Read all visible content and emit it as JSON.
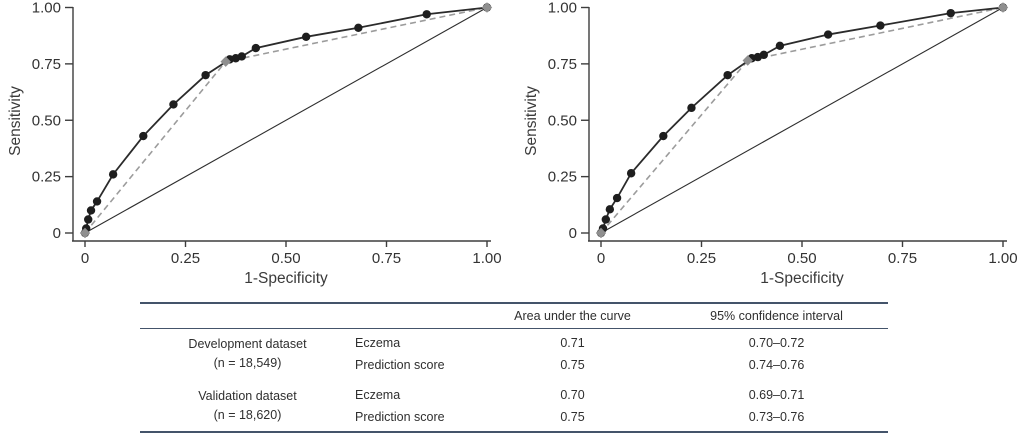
{
  "chart_data": [
    {
      "type": "line",
      "title": "",
      "xlabel": "1-Specificity",
      "ylabel": "Sensitivity",
      "xlim": [
        0,
        1
      ],
      "ylim": [
        0,
        1
      ],
      "grid": false,
      "legend": "none",
      "xticks": [
        0,
        0.25,
        0.5,
        0.75,
        1
      ],
      "xtick_labels": [
        "0",
        "0.25",
        "0.50",
        "0.75",
        "1.00"
      ],
      "yticks": [
        0,
        0.25,
        0.5,
        0.75,
        1
      ],
      "ytick_labels": [
        "0",
        "0.25",
        "0.50",
        "0.75",
        "1.00"
      ],
      "series": [
        {
          "name": "reference_diagonal",
          "dash": "",
          "marker": "none",
          "color": "#2e2e2e",
          "width": 1.1,
          "points": [
            [
              0,
              0
            ],
            [
              1,
              1
            ]
          ]
        },
        {
          "name": "roc_dashed_gray",
          "dash": "6 4",
          "marker": "diamond",
          "color": "#9c9c9c",
          "marker_color": "#8f8f8f",
          "width": 1.6,
          "points": [
            [
              0,
              0
            ],
            [
              0.35,
              0.76
            ],
            [
              1,
              1
            ]
          ]
        },
        {
          "name": "roc_solid_black",
          "dash": "",
          "marker": "circle",
          "color": "#2b2b2b",
          "marker_color": "#1e1e1e",
          "width": 1.8,
          "points": [
            [
              0,
              0
            ],
            [
              0.003,
              0.02
            ],
            [
              0.008,
              0.06
            ],
            [
              0.015,
              0.1
            ],
            [
              0.03,
              0.14
            ],
            [
              0.07,
              0.26
            ],
            [
              0.145,
              0.43
            ],
            [
              0.22,
              0.57
            ],
            [
              0.3,
              0.7
            ],
            [
              0.36,
              0.77
            ],
            [
              0.375,
              0.775
            ],
            [
              0.39,
              0.783
            ],
            [
              0.425,
              0.82
            ],
            [
              0.55,
              0.87
            ],
            [
              0.68,
              0.91
            ],
            [
              0.85,
              0.97
            ],
            [
              1,
              1
            ]
          ]
        }
      ]
    },
    {
      "type": "line",
      "title": "",
      "xlabel": "1-Specificity",
      "ylabel": "Sensitivity",
      "xlim": [
        0,
        1
      ],
      "ylim": [
        0,
        1
      ],
      "grid": false,
      "legend": "none",
      "xticks": [
        0,
        0.25,
        0.5,
        0.75,
        1
      ],
      "xtick_labels": [
        "0",
        "0.25",
        "0.50",
        "0.75",
        "1.00"
      ],
      "yticks": [
        0,
        0.25,
        0.5,
        0.75,
        1
      ],
      "ytick_labels": [
        "0",
        "0.25",
        "0.50",
        "0.75",
        "1.00"
      ],
      "series": [
        {
          "name": "reference_diagonal",
          "dash": "",
          "marker": "none",
          "color": "#2e2e2e",
          "width": 1.1,
          "points": [
            [
              0,
              0
            ],
            [
              1,
              1
            ]
          ]
        },
        {
          "name": "roc_dashed_gray",
          "dash": "6 4",
          "marker": "diamond",
          "color": "#9c9c9c",
          "marker_color": "#8f8f8f",
          "width": 1.6,
          "points": [
            [
              0,
              0
            ],
            [
              0.365,
              0.765
            ],
            [
              1,
              1
            ]
          ]
        },
        {
          "name": "roc_solid_black",
          "dash": "",
          "marker": "circle",
          "color": "#2b2b2b",
          "marker_color": "#1e1e1e",
          "width": 1.8,
          "points": [
            [
              0,
              0
            ],
            [
              0.005,
              0.02
            ],
            [
              0.012,
              0.06
            ],
            [
              0.022,
              0.105
            ],
            [
              0.04,
              0.155
            ],
            [
              0.075,
              0.265
            ],
            [
              0.155,
              0.43
            ],
            [
              0.225,
              0.555
            ],
            [
              0.315,
              0.7
            ],
            [
              0.375,
              0.775
            ],
            [
              0.39,
              0.78
            ],
            [
              0.405,
              0.79
            ],
            [
              0.445,
              0.83
            ],
            [
              0.565,
              0.88
            ],
            [
              0.695,
              0.92
            ],
            [
              0.87,
              0.975
            ],
            [
              1,
              1
            ]
          ]
        }
      ]
    }
  ],
  "table": {
    "col_auc": "Area under the curve",
    "col_ci": "95% confidence interval",
    "rule_color": "#44546a",
    "groups": [
      {
        "dataset": "Development dataset",
        "n": "(n = 18,549)",
        "rows": [
          {
            "measure": "Eczema",
            "auc": "0.71",
            "ci": "0.70–0.72"
          },
          {
            "measure": "Prediction score",
            "auc": "0.75",
            "ci": "0.74–0.76"
          }
        ]
      },
      {
        "dataset": "Validation dataset",
        "n": "(n = 18,620)",
        "rows": [
          {
            "measure": "Eczema",
            "auc": "0.70",
            "ci": "0.69–0.71"
          },
          {
            "measure": "Prediction score",
            "auc": "0.75",
            "ci": "0.73–0.76"
          }
        ]
      }
    ]
  }
}
